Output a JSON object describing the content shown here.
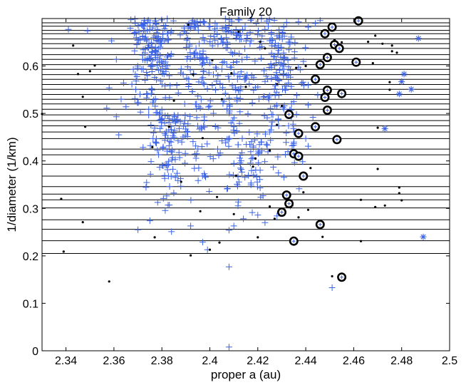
{
  "chart_data": {
    "type": "scatter",
    "title": "Family 20",
    "xlabel": "proper a (au)",
    "ylabel": "1/diameter (1/km)",
    "xlim": [
      2.33,
      2.5
    ],
    "ylim": [
      0,
      0.7
    ],
    "xticks": [
      "2.34",
      "2.36",
      "2.38",
      "2.4",
      "2.42",
      "2.44",
      "2.46",
      "2.48",
      "2.5"
    ],
    "yticks": [
      "0",
      "0.1",
      "0.2",
      "0.3",
      "0.4",
      "0.5",
      "0.6"
    ],
    "grid": false,
    "colors": {
      "plus": "#3b62e6",
      "star": "#3b62e6",
      "dot": "#000000",
      "ring": "#000000",
      "hline": "#000000"
    },
    "hlines": [
      0.691,
      0.684,
      0.675,
      0.668,
      0.657,
      0.647,
      0.637,
      0.624,
      0.614,
      0.603,
      0.593,
      0.582,
      0.572,
      0.561,
      0.551,
      0.54,
      0.53,
      0.52,
      0.509,
      0.497,
      0.485,
      0.474,
      0.461,
      0.447,
      0.425,
      0.413,
      0.393,
      0.368,
      0.346,
      0.33,
      0.318,
      0.301,
      0.276,
      0.256,
      0.232,
      0.205
    ],
    "circles": [
      {
        "x": 2.462,
        "y": 0.695
      },
      {
        "x": 2.451,
        "y": 0.682
      },
      {
        "x": 2.448,
        "y": 0.668
      },
      {
        "x": 2.452,
        "y": 0.645
      },
      {
        "x": 2.454,
        "y": 0.637
      },
      {
        "x": 2.449,
        "y": 0.618
      },
      {
        "x": 2.461,
        "y": 0.608
      },
      {
        "x": 2.446,
        "y": 0.603
      },
      {
        "x": 2.444,
        "y": 0.572
      },
      {
        "x": 2.449,
        "y": 0.549
      },
      {
        "x": 2.455,
        "y": 0.542
      },
      {
        "x": 2.448,
        "y": 0.534
      },
      {
        "x": 2.449,
        "y": 0.507
      },
      {
        "x": 2.433,
        "y": 0.498
      },
      {
        "x": 2.444,
        "y": 0.472
      },
      {
        "x": 2.437,
        "y": 0.458
      },
      {
        "x": 2.453,
        "y": 0.445
      },
      {
        "x": 2.435,
        "y": 0.415
      },
      {
        "x": 2.437,
        "y": 0.41
      },
      {
        "x": 2.439,
        "y": 0.368
      },
      {
        "x": 2.432,
        "y": 0.328
      },
      {
        "x": 2.433,
        "y": 0.31
      },
      {
        "x": 2.43,
        "y": 0.292
      },
      {
        "x": 2.446,
        "y": 0.266
      },
      {
        "x": 2.435,
        "y": 0.231
      },
      {
        "x": 2.455,
        "y": 0.155
      }
    ],
    "stars": [
      {
        "x": 2.487,
        "y": 0.658
      },
      {
        "x": 2.481,
        "y": 0.583
      },
      {
        "x": 2.48,
        "y": 0.567
      },
      {
        "x": 2.484,
        "y": 0.551
      },
      {
        "x": 2.479,
        "y": 0.541
      },
      {
        "x": 2.473,
        "y": 0.468
      },
      {
        "x": 2.489,
        "y": 0.24
      }
    ],
    "dots": [
      {
        "x": 2.343,
        "y": 0.643
      },
      {
        "x": 2.35,
        "y": 0.589
      },
      {
        "x": 2.345,
        "y": 0.583
      },
      {
        "x": 2.352,
        "y": 0.601
      },
      {
        "x": 2.347,
        "y": 0.535
      },
      {
        "x": 2.348,
        "y": 0.472
      },
      {
        "x": 2.338,
        "y": 0.32
      },
      {
        "x": 2.347,
        "y": 0.271
      },
      {
        "x": 2.339,
        "y": 0.209
      },
      {
        "x": 2.358,
        "y": 0.146
      },
      {
        "x": 2.33,
        "y": 0.499
      },
      {
        "x": 2.376,
        "y": 0.429
      },
      {
        "x": 2.377,
        "y": 0.239
      },
      {
        "x": 2.392,
        "y": 0.201
      },
      {
        "x": 2.4,
        "y": 0.213
      },
      {
        "x": 2.404,
        "y": 0.228
      },
      {
        "x": 2.42,
        "y": 0.239
      },
      {
        "x": 2.427,
        "y": 0.278
      },
      {
        "x": 2.447,
        "y": 0.24
      },
      {
        "x": 2.451,
        "y": 0.157
      },
      {
        "x": 2.463,
        "y": 0.318
      },
      {
        "x": 2.463,
        "y": 0.231
      },
      {
        "x": 2.469,
        "y": 0.303
      },
      {
        "x": 2.473,
        "y": 0.306
      },
      {
        "x": 2.48,
        "y": 0.317
      },
      {
        "x": 2.479,
        "y": 0.332
      },
      {
        "x": 2.479,
        "y": 0.344
      },
      {
        "x": 2.47,
        "y": 0.383
      },
      {
        "x": 2.47,
        "y": 0.47
      },
      {
        "x": 2.475,
        "y": 0.55
      },
      {
        "x": 2.475,
        "y": 0.566
      },
      {
        "x": 2.468,
        "y": 0.606
      },
      {
        "x": 2.472,
        "y": 0.647
      },
      {
        "x": 2.476,
        "y": 0.643
      },
      {
        "x": 2.478,
        "y": 0.628
      },
      {
        "x": 2.476,
        "y": 0.631
      },
      {
        "x": 2.469,
        "y": 0.664
      },
      {
        "x": 2.466,
        "y": 0.651
      },
      {
        "x": 2.455,
        "y": 0.65
      },
      {
        "x": 2.452,
        "y": 0.655
      },
      {
        "x": 2.44,
        "y": 0.6
      },
      {
        "x": 2.436,
        "y": 0.596
      },
      {
        "x": 2.43,
        "y": 0.516
      },
      {
        "x": 2.428,
        "y": 0.476
      },
      {
        "x": 2.425,
        "y": 0.422
      },
      {
        "x": 2.418,
        "y": 0.388
      },
      {
        "x": 2.411,
        "y": 0.369
      },
      {
        "x": 2.403,
        "y": 0.324
      },
      {
        "x": 2.396,
        "y": 0.294
      },
      {
        "x": 2.388,
        "y": 0.356
      },
      {
        "x": 2.383,
        "y": 0.472
      },
      {
        "x": 2.385,
        "y": 0.527
      },
      {
        "x": 2.393,
        "y": 0.582
      },
      {
        "x": 2.401,
        "y": 0.612
      },
      {
        "x": 2.409,
        "y": 0.585
      },
      {
        "x": 2.415,
        "y": 0.556
      },
      {
        "x": 2.423,
        "y": 0.637
      },
      {
        "x": 2.428,
        "y": 0.562
      },
      {
        "x": 2.434,
        "y": 0.502
      },
      {
        "x": 2.391,
        "y": 0.687
      },
      {
        "x": 2.412,
        "y": 0.672
      },
      {
        "x": 2.421,
        "y": 0.651
      },
      {
        "x": 2.405,
        "y": 0.53
      },
      {
        "x": 2.397,
        "y": 0.448
      },
      {
        "x": 2.419,
        "y": 0.405
      },
      {
        "x": 2.442,
        "y": 0.385
      },
      {
        "x": 2.439,
        "y": 0.334
      },
      {
        "x": 2.434,
        "y": 0.312
      },
      {
        "x": 2.441,
        "y": 0.297
      },
      {
        "x": 2.437,
        "y": 0.281
      },
      {
        "x": 2.425,
        "y": 0.304
      },
      {
        "x": 2.41,
        "y": 0.288
      }
    ],
    "plus_clusters": [
      {
        "a0": 2.366,
        "a1": 2.386,
        "d0": 0.45,
        "d1": 0.7,
        "n": 170
      },
      {
        "a0": 2.372,
        "a1": 2.392,
        "d0": 0.27,
        "d1": 0.5,
        "n": 90
      },
      {
        "a0": 2.384,
        "a1": 2.406,
        "d0": 0.3,
        "d1": 0.7,
        "n": 150
      },
      {
        "a0": 2.4,
        "a1": 2.42,
        "d0": 0.4,
        "d1": 0.7,
        "n": 110
      },
      {
        "a0": 2.404,
        "a1": 2.424,
        "d0": 0.28,
        "d1": 0.45,
        "n": 50
      },
      {
        "a0": 2.415,
        "a1": 2.436,
        "d0": 0.3,
        "d1": 0.7,
        "n": 120
      },
      {
        "a0": 2.425,
        "a1": 2.441,
        "d0": 0.3,
        "d1": 0.65,
        "n": 60
      }
    ],
    "plus_points": [
      {
        "x": 2.341,
        "y": 0.677
      },
      {
        "x": 2.349,
        "y": 0.674
      },
      {
        "x": 2.359,
        "y": 0.653
      },
      {
        "x": 2.361,
        "y": 0.614
      },
      {
        "x": 2.358,
        "y": 0.554
      },
      {
        "x": 2.357,
        "y": 0.511
      },
      {
        "x": 2.361,
        "y": 0.493
      },
      {
        "x": 2.362,
        "y": 0.455
      },
      {
        "x": 2.365,
        "y": 0.514
      },
      {
        "x": 2.364,
        "y": 0.564
      },
      {
        "x": 2.363,
        "y": 0.53
      },
      {
        "x": 2.444,
        "y": 0.69
      },
      {
        "x": 2.446,
        "y": 0.696
      },
      {
        "x": 2.441,
        "y": 0.682
      },
      {
        "x": 2.437,
        "y": 0.693
      },
      {
        "x": 2.441,
        "y": 0.56
      },
      {
        "x": 2.445,
        "y": 0.539
      },
      {
        "x": 2.441,
        "y": 0.518
      },
      {
        "x": 2.443,
        "y": 0.492
      },
      {
        "x": 2.441,
        "y": 0.431
      },
      {
        "x": 2.44,
        "y": 0.447
      },
      {
        "x": 2.37,
        "y": 0.255
      },
      {
        "x": 2.375,
        "y": 0.274
      },
      {
        "x": 2.384,
        "y": 0.251
      },
      {
        "x": 2.392,
        "y": 0.263
      },
      {
        "x": 2.397,
        "y": 0.229
      },
      {
        "x": 2.399,
        "y": 0.213
      },
      {
        "x": 2.408,
        "y": 0.254
      },
      {
        "x": 2.41,
        "y": 0.263
      },
      {
        "x": 2.414,
        "y": 0.278
      },
      {
        "x": 2.423,
        "y": 0.27
      },
      {
        "x": 2.42,
        "y": 0.286
      },
      {
        "x": 2.428,
        "y": 0.284
      },
      {
        "x": 2.408,
        "y": 0.177
      },
      {
        "x": 2.408,
        "y": 0.008
      },
      {
        "x": 2.451,
        "y": 0.133
      }
    ]
  }
}
